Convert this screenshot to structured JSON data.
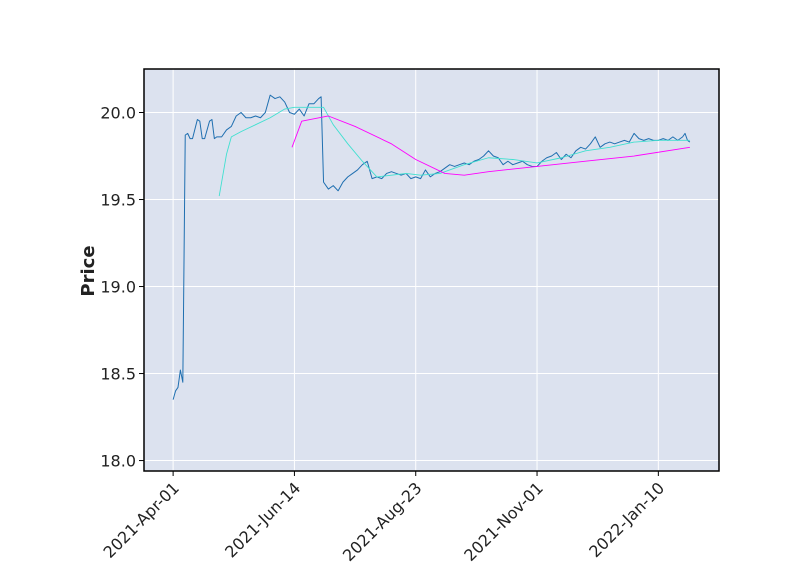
{
  "chart_data": {
    "type": "line",
    "y_label": "Price",
    "xlim": [
      -12,
      225
    ],
    "xticks": [
      {
        "value": 0,
        "label": "2021-Apr-01"
      },
      {
        "value": 50,
        "label": "2021-Jun-14"
      },
      {
        "value": 100,
        "label": "2021-Aug-23"
      },
      {
        "value": 150,
        "label": "2021-Nov-01"
      },
      {
        "value": 200,
        "label": "2022-Jan-10"
      }
    ],
    "ylim": [
      17.94,
      20.25
    ],
    "yticks": [
      {
        "value": 18,
        "label": "18.0"
      },
      18.5,
      {
        "value": 19,
        "label": "19.0"
      },
      19.5,
      {
        "value": 20,
        "label": "20.0"
      }
    ],
    "grid": true,
    "series": [
      {
        "color": "#1f6fb0",
        "width": 1,
        "x": [
          0,
          1,
          2,
          3,
          4,
          5,
          6,
          7,
          8,
          10,
          11,
          12,
          13,
          15,
          16,
          17,
          18,
          20,
          22,
          24,
          26,
          28,
          30,
          32,
          34,
          36,
          38,
          40,
          42,
          44,
          46,
          48,
          50,
          52,
          54,
          56,
          58,
          60,
          61,
          62,
          64,
          66,
          68,
          70,
          72,
          74,
          76,
          78,
          80,
          82,
          84,
          86,
          88,
          90,
          92,
          94,
          96,
          98,
          100,
          102,
          104,
          106,
          108,
          110,
          112,
          114,
          116,
          118,
          120,
          122,
          124,
          126,
          128,
          130,
          132,
          134,
          136,
          138,
          140,
          142,
          144,
          146,
          148,
          150,
          152,
          154,
          156,
          158,
          160,
          162,
          164,
          166,
          168,
          170,
          172,
          174,
          176,
          178,
          180,
          182,
          184,
          186,
          188,
          190,
          192,
          194,
          196,
          198,
          200,
          202,
          204,
          206,
          208,
          210,
          211,
          212,
          213
        ],
        "values": [
          18.35,
          18.4,
          18.42,
          18.52,
          18.45,
          19.87,
          19.88,
          19.85,
          19.85,
          19.96,
          19.95,
          19.85,
          19.85,
          19.95,
          19.96,
          19.85,
          19.86,
          19.86,
          19.9,
          19.92,
          19.98,
          20.0,
          19.97,
          19.97,
          19.98,
          19.97,
          20.0,
          20.1,
          20.08,
          20.09,
          20.06,
          20.0,
          19.99,
          20.02,
          19.98,
          20.05,
          20.05,
          20.08,
          20.09,
          19.6,
          19.56,
          19.58,
          19.55,
          19.6,
          19.63,
          19.65,
          19.67,
          19.7,
          19.72,
          19.62,
          19.63,
          19.62,
          19.65,
          19.66,
          19.65,
          19.64,
          19.65,
          19.62,
          19.63,
          19.62,
          19.67,
          19.63,
          19.65,
          19.66,
          19.68,
          19.7,
          19.69,
          19.7,
          19.71,
          19.7,
          19.72,
          19.73,
          19.75,
          19.78,
          19.75,
          19.74,
          19.7,
          19.72,
          19.7,
          19.71,
          19.72,
          19.7,
          19.69,
          19.69,
          19.72,
          19.74,
          19.75,
          19.77,
          19.73,
          19.76,
          19.74,
          19.78,
          19.8,
          19.79,
          19.82,
          19.86,
          19.8,
          19.82,
          19.83,
          19.82,
          19.83,
          19.84,
          19.83,
          19.88,
          19.85,
          19.84,
          19.85,
          19.84,
          19.84,
          19.85,
          19.84,
          19.86,
          19.84,
          19.86,
          19.88,
          19.84,
          19.83
        ]
      },
      {
        "color": "#40e0d0",
        "width": 0.9,
        "x": [
          19,
          22,
          24,
          28,
          34,
          40,
          46,
          50,
          56,
          62,
          66,
          72,
          78,
          84,
          90,
          96,
          102,
          110,
          120,
          130,
          140,
          150,
          160,
          170,
          180,
          190,
          200,
          213
        ],
        "values": [
          19.52,
          19.76,
          19.86,
          19.89,
          19.93,
          19.97,
          20.02,
          20.03,
          20.03,
          20.03,
          19.93,
          19.82,
          19.72,
          19.63,
          19.64,
          19.65,
          19.64,
          19.65,
          19.7,
          19.74,
          19.73,
          19.71,
          19.74,
          19.78,
          19.8,
          19.83,
          19.84,
          19.84
        ]
      },
      {
        "color": "#ff00ff",
        "width": 0.9,
        "x": [
          49,
          53,
          64,
          75,
          90,
          100,
          112,
          120,
          130,
          150,
          170,
          190,
          213
        ],
        "values": [
          19.8,
          19.95,
          19.98,
          19.92,
          19.82,
          19.73,
          19.65,
          19.64,
          19.66,
          19.69,
          19.72,
          19.75,
          19.8
        ]
      }
    ]
  }
}
